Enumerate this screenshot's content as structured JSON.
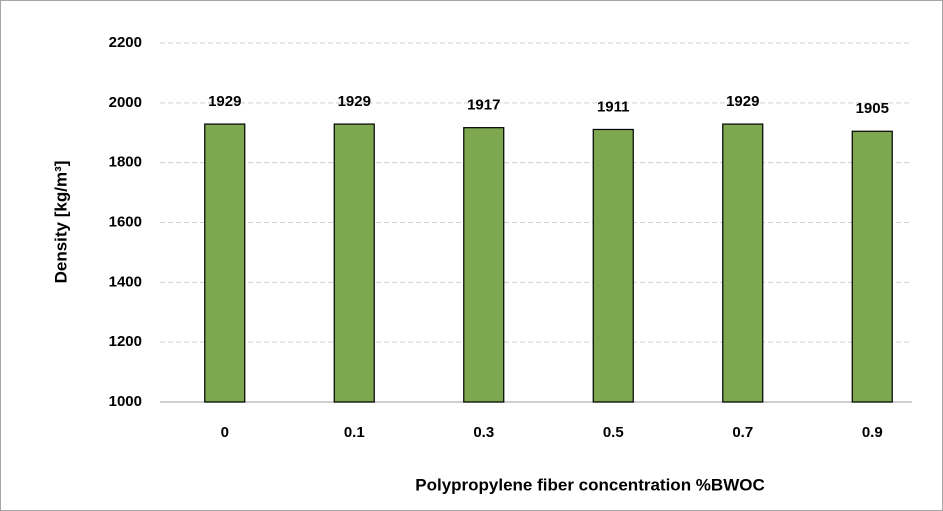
{
  "chart_data": {
    "type": "bar",
    "x_label": "Polypropylene fiber  concentration %BWOC",
    "y_label": "Density [kg/m³]",
    "categories": [
      "0",
      "0.1",
      "0.3",
      "0.5",
      "0.7",
      "0.9"
    ],
    "values": [
      1929,
      1929,
      1917,
      1911,
      1929,
      1905
    ],
    "color": "#7ea84f",
    "ylim": [
      1000,
      2200
    ],
    "yticks": [
      1000,
      1200,
      1400,
      1600,
      1800,
      2000,
      2200
    ],
    "grid": true
  }
}
